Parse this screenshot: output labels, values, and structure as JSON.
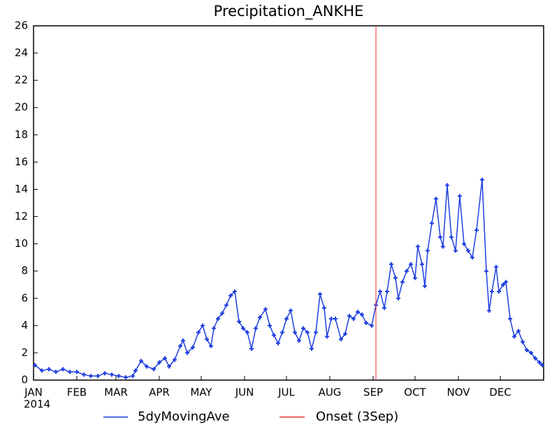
{
  "chart_data": {
    "type": "line",
    "title": "Precipitation_ANKHE",
    "x": [
      2,
      7,
      12,
      17,
      22,
      27,
      32,
      37,
      42,
      47,
      52,
      57,
      62,
      67,
      72,
      74,
      78,
      82,
      87,
      91,
      95,
      98,
      102,
      106,
      108,
      111,
      115,
      119,
      122,
      125,
      128,
      130,
      133,
      136,
      139,
      142,
      145,
      148,
      151,
      154,
      157,
      160,
      163,
      167,
      170,
      173,
      176,
      179,
      182,
      185,
      188,
      191,
      194,
      197,
      200,
      203,
      206,
      209,
      211,
      214,
      217,
      221,
      224,
      227,
      230,
      233,
      236,
      239,
      243,
      246,
      249,
      252,
      254,
      257,
      260,
      262,
      265,
      268,
      271,
      274,
      276,
      279,
      281,
      283,
      286,
      289,
      292,
      294,
      297,
      300,
      303,
      306,
      309,
      312,
      315,
      318,
      322,
      325,
      327,
      329,
      332,
      334,
      337,
      339,
      342,
      345,
      348,
      351,
      354,
      357,
      360,
      363,
      365
    ],
    "series": [
      {
        "name": "5dyMovingAve",
        "color": "#1f3fe0",
        "values": [
          1.1,
          0.7,
          0.8,
          0.6,
          0.8,
          0.6,
          0.6,
          0.4,
          0.3,
          0.3,
          0.5,
          0.4,
          0.3,
          0.2,
          0.3,
          0.7,
          1.4,
          1.0,
          0.8,
          1.3,
          1.6,
          1.0,
          1.5,
          2.5,
          2.9,
          2.0,
          2.4,
          3.5,
          4.0,
          3.0,
          2.5,
          3.8,
          4.5,
          4.9,
          5.5,
          6.2,
          6.5,
          4.3,
          3.8,
          3.5,
          2.3,
          3.8,
          4.6,
          5.2,
          4.0,
          3.3,
          2.7,
          3.5,
          4.5,
          5.1,
          3.5,
          2.9,
          3.8,
          3.5,
          2.3,
          3.5,
          6.3,
          5.3,
          3.2,
          4.5,
          4.5,
          3.0,
          3.4,
          4.7,
          4.5,
          5.0,
          4.8,
          4.2,
          4.0,
          5.5,
          6.5,
          5.3,
          6.5,
          8.5,
          7.5,
          6.0,
          7.2,
          8.0,
          8.5,
          7.5,
          9.8,
          8.5,
          6.9,
          9.5,
          11.5,
          13.3,
          10.5,
          9.8,
          14.3,
          10.5,
          9.5,
          13.5,
          10.0,
          9.5,
          9.0,
          11.0,
          14.7,
          8.0,
          5.1,
          6.5,
          8.3,
          6.5,
          7.0,
          7.2,
          4.5,
          3.2,
          3.6,
          2.8,
          2.2,
          2.0,
          1.6,
          1.3,
          1.1
        ]
      }
    ],
    "vline": {
      "name": "Onset (3Sep)",
      "color": "#e8312f",
      "x": 246
    },
    "xlim": [
      1,
      366
    ],
    "xticks": [
      {
        "value": 1,
        "label": "JAN"
      },
      {
        "value": 32,
        "label": "FEB"
      },
      {
        "value": 60,
        "label": "MAR"
      },
      {
        "value": 91,
        "label": "APR"
      },
      {
        "value": 121,
        "label": "MAY"
      },
      {
        "value": 152,
        "label": "JUN"
      },
      {
        "value": 182,
        "label": "JUL"
      },
      {
        "value": 213,
        "label": "AUG"
      },
      {
        "value": 244,
        "label": "SEP"
      },
      {
        "value": 274,
        "label": "OCT"
      },
      {
        "value": 305,
        "label": "NOV"
      },
      {
        "value": 335,
        "label": "DEC"
      }
    ],
    "year_label": "2014",
    "ylim": [
      0,
      26
    ],
    "yticks": [
      0,
      2,
      4,
      6,
      8,
      10,
      12,
      14,
      16,
      18,
      20,
      22,
      24,
      26
    ]
  }
}
